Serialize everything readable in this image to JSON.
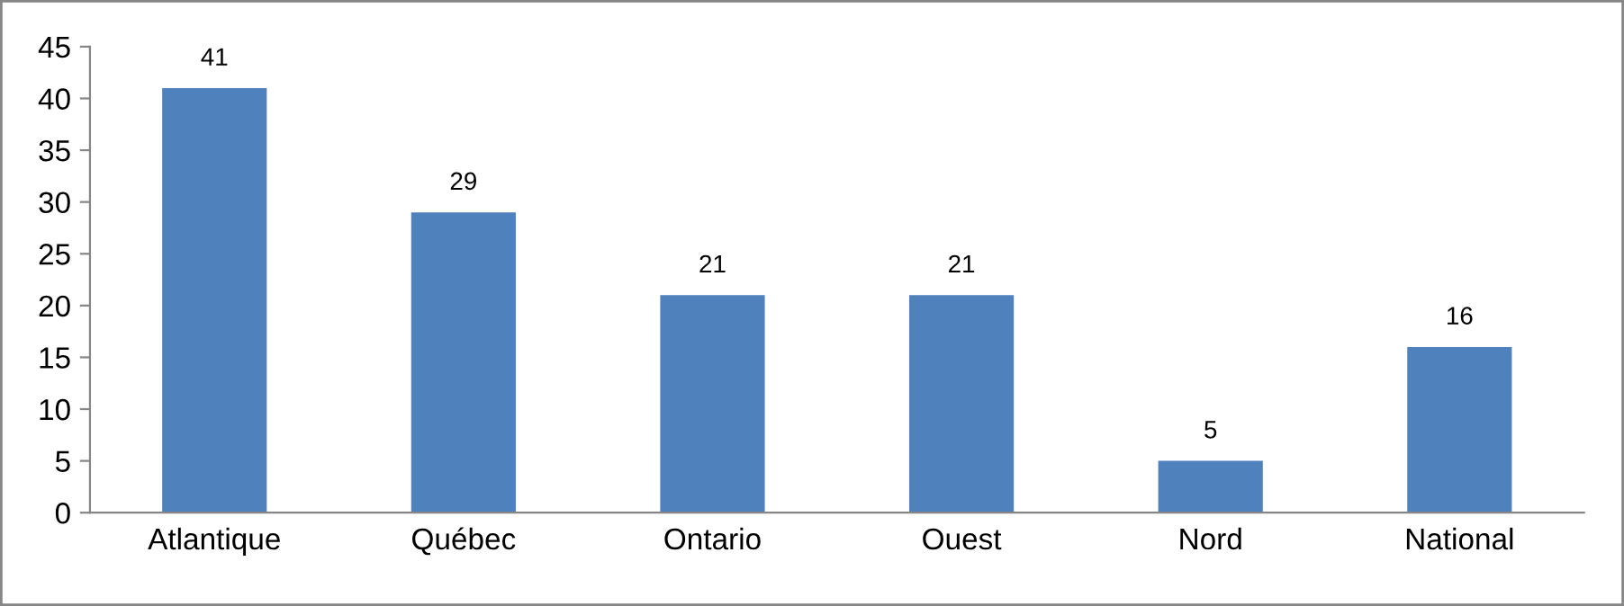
{
  "chart_data": {
    "type": "bar",
    "categories": [
      "Atlantique",
      "Québec",
      "Ontario",
      "Ouest",
      "Nord",
      "National"
    ],
    "values": [
      41,
      29,
      21,
      21,
      5,
      16
    ],
    "color": "#4f81bd",
    "ylim": [
      0,
      45
    ],
    "yticks": [
      0,
      5,
      10,
      15,
      20,
      25,
      30,
      35,
      40,
      45
    ],
    "data_labels": true,
    "grid": false,
    "legend": false
  }
}
